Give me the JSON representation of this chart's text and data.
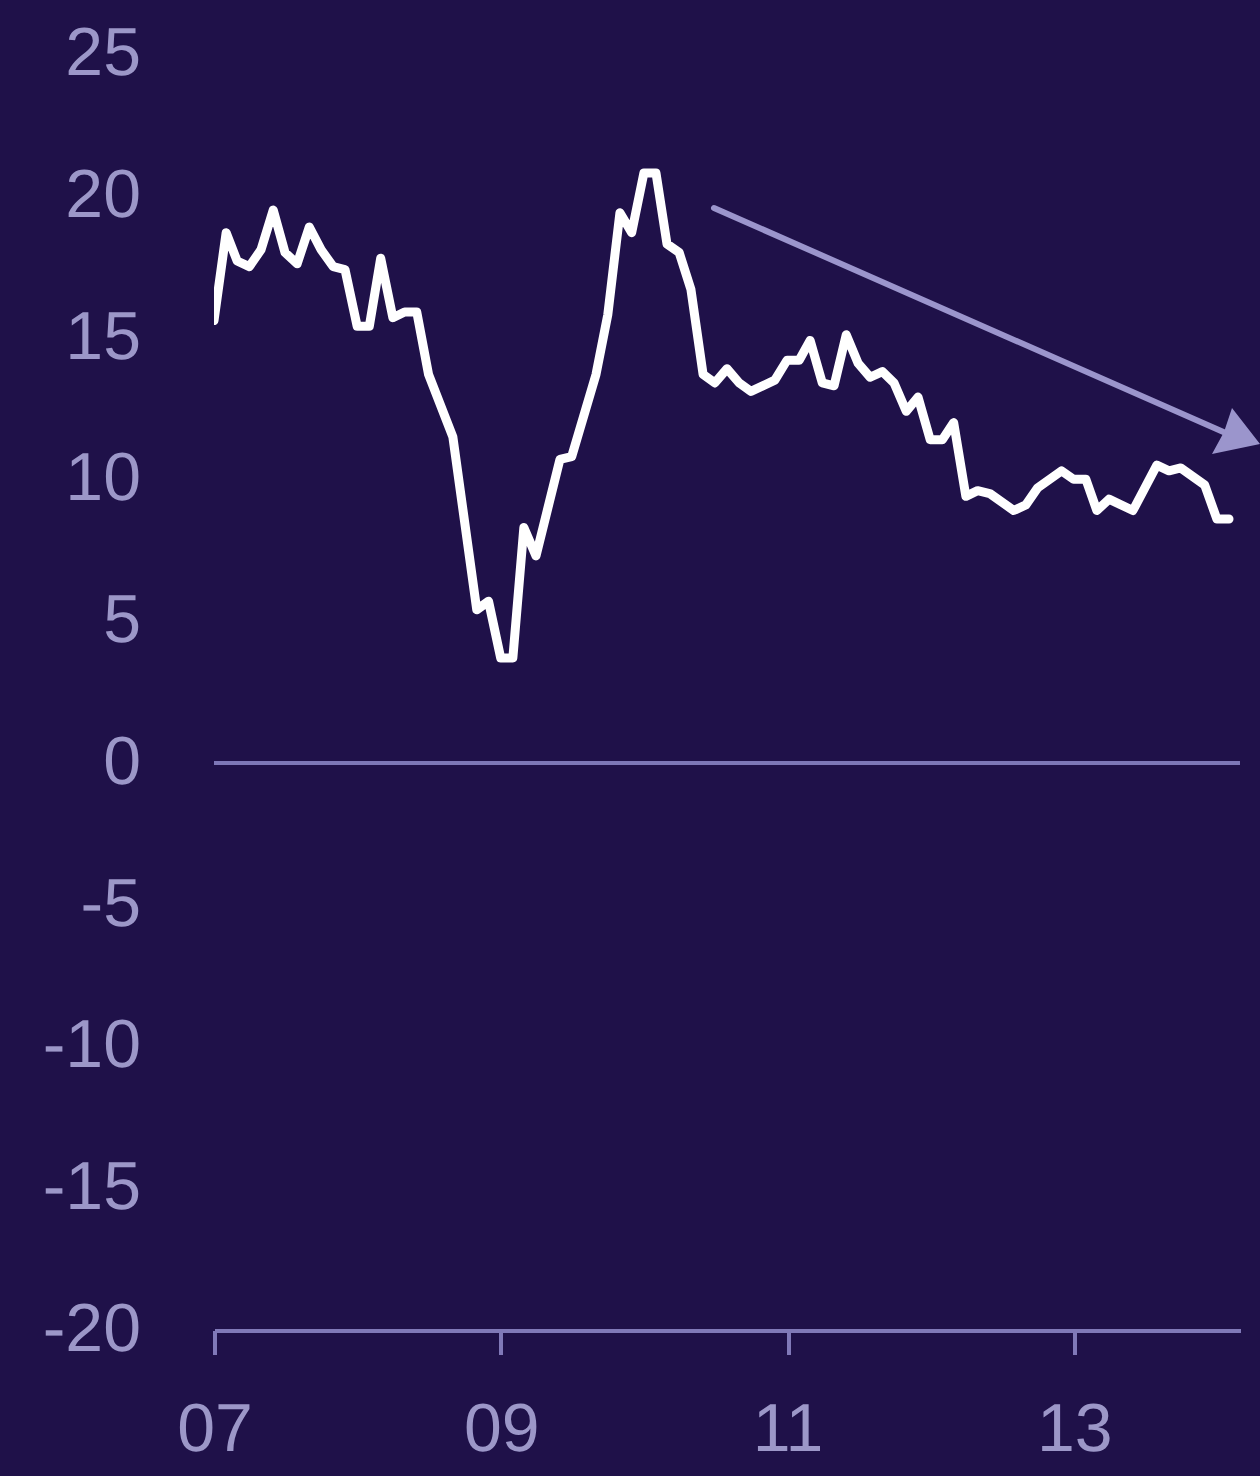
{
  "chart_data": {
    "type": "line",
    "x": [
      "2007-01",
      "2007-02",
      "2007-03",
      "2007-04",
      "2007-05",
      "2007-06",
      "2007-07",
      "2007-08",
      "2007-09",
      "2007-10",
      "2007-11",
      "2007-12",
      "2008-01",
      "2008-02",
      "2008-03",
      "2008-04",
      "2008-05",
      "2008-06",
      "2008-07",
      "2008-09",
      "2008-11",
      "2008-12",
      "2009-01",
      "2009-02",
      "2009-03",
      "2009-04",
      "2009-06",
      "2009-07",
      "2009-09",
      "2009-10",
      "2009-11",
      "2009-12",
      "2010-01",
      "2010-02",
      "2010-03",
      "2010-04",
      "2010-05",
      "2010-06",
      "2010-07",
      "2010-08",
      "2010-09",
      "2010-10",
      "2010-12",
      "2011-01",
      "2011-02",
      "2011-03",
      "2011-04",
      "2011-05",
      "2011-06",
      "2011-07",
      "2011-08",
      "2011-09",
      "2011-10",
      "2011-11",
      "2011-12",
      "2012-01",
      "2012-02",
      "2012-03",
      "2012-04",
      "2012-05",
      "2012-06",
      "2012-08",
      "2012-09",
      "2012-10",
      "2012-12",
      "2013-01",
      "2013-02",
      "2013-03",
      "2013-04",
      "2013-06",
      "2013-08",
      "2013-09",
      "2013-10",
      "2013-12",
      "2014-01",
      "2014-02"
    ],
    "series": [
      {
        "color": "#ffffff",
        "values": [
          15.6,
          18.7,
          17.7,
          17.5,
          18.1,
          19.5,
          18.0,
          17.6,
          18.9,
          18.1,
          17.5,
          17.4,
          15.4,
          15.4,
          17.8,
          15.7,
          15.9,
          15.9,
          13.7,
          11.5,
          5.4,
          5.7,
          3.7,
          3.7,
          8.3,
          7.3,
          10.7,
          10.8,
          13.7,
          15.8,
          19.4,
          18.7,
          20.8,
          20.8,
          18.3,
          18.0,
          16.7,
          13.7,
          13.4,
          13.9,
          13.4,
          13.1,
          13.5,
          14.2,
          14.2,
          14.9,
          13.4,
          13.3,
          15.1,
          14.1,
          13.6,
          13.8,
          13.4,
          12.4,
          12.9,
          11.4,
          11.4,
          12.0,
          9.4,
          9.6,
          9.5,
          8.9,
          9.1,
          9.7,
          10.3,
          10.0,
          10.0,
          8.9,
          9.3,
          8.9,
          10.5,
          10.3,
          10.4,
          9.8,
          8.6,
          8.6
        ]
      }
    ],
    "xlim": [
      "2007-01",
      "2014-03"
    ],
    "xticks": [
      {
        "value": "2007-01",
        "label": "07"
      },
      {
        "value": "2009-01",
        "label": "09"
      },
      {
        "value": "2011-01",
        "label": "11"
      },
      {
        "value": "2013-01",
        "label": "13"
      }
    ],
    "ylim": [
      -20,
      25
    ],
    "yticks": [
      -20,
      -15,
      -10,
      -5,
      0,
      5,
      10,
      15,
      20,
      25
    ],
    "ref_lines": [
      {
        "axis": "y",
        "value": 0,
        "color": "#7d77b7"
      }
    ]
  }
}
